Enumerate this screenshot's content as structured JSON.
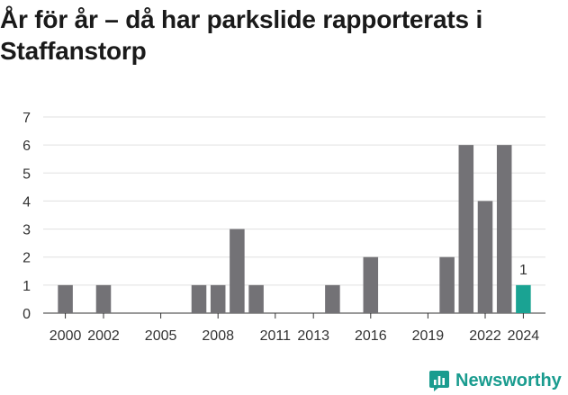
{
  "title": "År för år – då har parkslide rapporterats i Staffanstorp",
  "brand": {
    "name": "Newsworthy",
    "icon": "bar-chart-logo-icon",
    "color": "#1a9c8f"
  },
  "chart_data": {
    "type": "bar",
    "title": "År för år – då har parkslide rapporterats i Staffanstorp",
    "xlabel": "",
    "ylabel": "",
    "ylim": [
      0,
      7
    ],
    "yticks": [
      0,
      1,
      2,
      3,
      4,
      5,
      6,
      7
    ],
    "grid": true,
    "categories": [
      2000,
      2001,
      2002,
      2003,
      2004,
      2005,
      2006,
      2007,
      2008,
      2009,
      2010,
      2011,
      2012,
      2013,
      2014,
      2015,
      2016,
      2017,
      2018,
      2019,
      2020,
      2021,
      2022,
      2023,
      2024
    ],
    "xticks": [
      "2000",
      "2002",
      "2005",
      "2008",
      "2011",
      "2013",
      "2016",
      "2019",
      "2022",
      "2024"
    ],
    "values": [
      1,
      0,
      1,
      0,
      0,
      0,
      0,
      1,
      1,
      3,
      1,
      0,
      0,
      0,
      1,
      0,
      2,
      0,
      0,
      0,
      2,
      6,
      4,
      6,
      1
    ],
    "bar_color": "#737276",
    "highlight_color": "#1aa393",
    "highlight_category": 2024,
    "data_labels": [
      {
        "category": 2024,
        "text": "1"
      }
    ]
  }
}
